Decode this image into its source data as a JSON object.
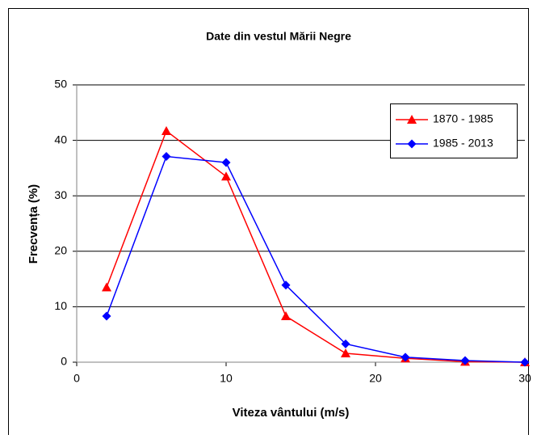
{
  "chart_data": {
    "type": "line",
    "title": "Date din vestul Mării Negre",
    "x_label": "Viteza vântului (m/s)",
    "y_label": "Frecvența (%)",
    "x": [
      2,
      6,
      10,
      14,
      18,
      22,
      26,
      30
    ],
    "series": [
      {
        "name": "1870 - 1985",
        "color": "#ff0000",
        "marker": "triangle",
        "values": [
          13.5,
          41.7,
          33.5,
          8.3,
          1.6,
          0.7,
          0.1,
          0
        ]
      },
      {
        "name": "1985 - 2013",
        "color": "#0000ff",
        "marker": "diamond",
        "values": [
          8.3,
          37.1,
          36,
          13.9,
          3.3,
          0.9,
          0.3,
          0
        ]
      }
    ],
    "xlim": [
      0,
      30
    ],
    "xticks": [
      0,
      10,
      20,
      30
    ],
    "ylim": [
      0,
      50
    ],
    "yticks": [
      0,
      10,
      20,
      30,
      40,
      50
    ],
    "grid": true,
    "legend": "top-right"
  }
}
